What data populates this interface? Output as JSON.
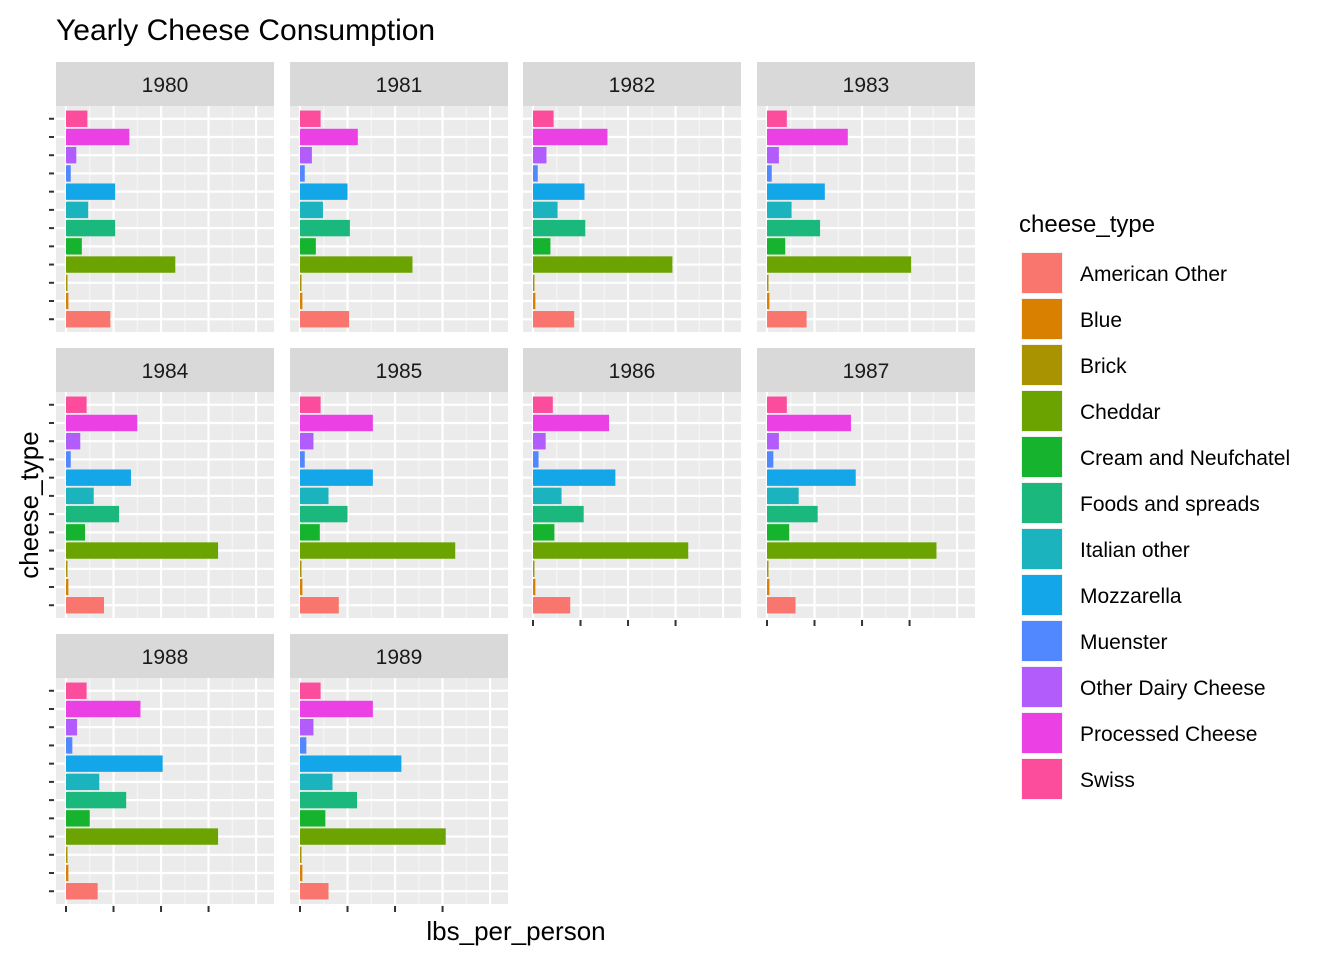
{
  "chart_data": {
    "type": "bar",
    "orientation": "horizontal",
    "faceted_by": "year",
    "title": "Yearly Cheese Consumption",
    "xlabel": "lbs_per_person",
    "ylabel": "cheese_type",
    "xlim": [
      0,
      12.5
    ],
    "x_tick_values": [
      0,
      3,
      6,
      9
    ],
    "grid": true,
    "legend": {
      "title": "cheese_type",
      "position": "right"
    },
    "categories": [
      "American Other",
      "Blue",
      "Brick",
      "Cheddar",
      "Cream and Neufchatel",
      "Foods and spreads",
      "Italian other",
      "Mozzarella",
      "Muenster",
      "Other Dairy Cheese",
      "Processed Cheese",
      "Swiss"
    ],
    "colors": [
      "#F8766D",
      "#DB8E00",
      "#AEA200",
      "#64B200",
      "#00BD5C",
      "#00C1A7",
      "#00BADE",
      "#00A6FF",
      "#B385FF",
      "#EF67EB",
      "#FF63B6",
      "#FF6C91"
    ],
    "fill_colors": [
      "#F8766D",
      "#D98000",
      "#AA9300",
      "#6BA300",
      "#16B42E",
      "#1BB87E",
      "#1BB4BE",
      "#13A6E8",
      "#5288FF",
      "#B25CFC",
      "#EB40E4",
      "#FC4C9C"
    ],
    "facets": [
      {
        "year": "1980",
        "values": [
          2.8,
          0.15,
          0.08,
          6.9,
          1.0,
          3.1,
          1.4,
          3.1,
          0.3,
          0.65,
          4.0,
          1.35
        ]
      },
      {
        "year": "1981",
        "values": [
          3.1,
          0.15,
          0.08,
          7.1,
          1.0,
          3.15,
          1.45,
          3.0,
          0.3,
          0.75,
          3.65,
          1.3
        ]
      },
      {
        "year": "1982",
        "values": [
          2.6,
          0.15,
          0.08,
          8.8,
          1.1,
          3.3,
          1.55,
          3.25,
          0.3,
          0.85,
          4.7,
          1.3
        ]
      },
      {
        "year": "1983",
        "values": [
          2.5,
          0.15,
          0.08,
          9.1,
          1.15,
          3.35,
          1.55,
          3.65,
          0.3,
          0.75,
          5.1,
          1.25
        ]
      },
      {
        "year": "1984",
        "values": [
          2.4,
          0.15,
          0.08,
          9.6,
          1.2,
          3.35,
          1.75,
          4.1,
          0.3,
          0.9,
          4.5,
          1.3
        ]
      },
      {
        "year": "1985",
        "values": [
          2.45,
          0.15,
          0.08,
          9.8,
          1.25,
          3.0,
          1.8,
          4.6,
          0.3,
          0.85,
          4.6,
          1.3
        ]
      },
      {
        "year": "1986",
        "values": [
          2.35,
          0.15,
          0.08,
          9.8,
          1.35,
          3.2,
          1.8,
          5.2,
          0.35,
          0.8,
          4.8,
          1.25
        ]
      },
      {
        "year": "1987",
        "values": [
          1.8,
          0.15,
          0.08,
          10.7,
          1.4,
          3.2,
          2.0,
          5.6,
          0.4,
          0.75,
          5.3,
          1.25
        ]
      },
      {
        "year": "1988",
        "values": [
          2.0,
          0.15,
          0.08,
          9.6,
          1.5,
          3.8,
          2.1,
          6.1,
          0.4,
          0.7,
          4.7,
          1.3
        ]
      },
      {
        "year": "1989",
        "values": [
          1.8,
          0.15,
          0.08,
          9.2,
          1.6,
          3.6,
          2.05,
          6.4,
          0.4,
          0.85,
          4.6,
          1.3
        ]
      }
    ]
  }
}
